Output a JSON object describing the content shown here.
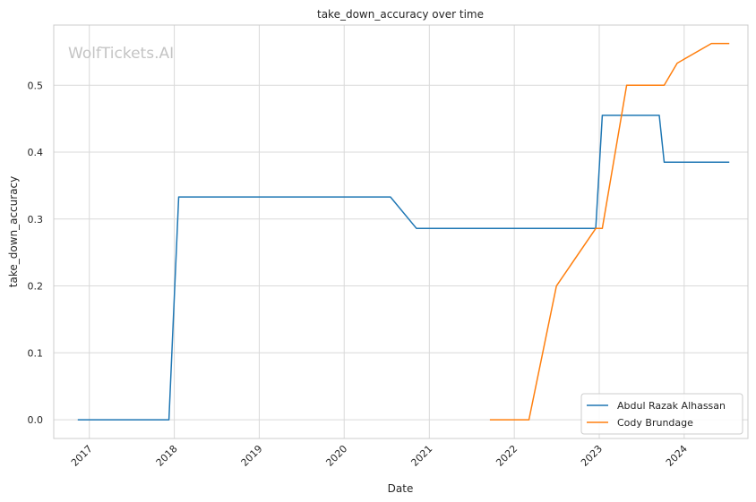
{
  "chart_data": {
    "type": "line",
    "title": "take_down_accuracy over time",
    "xlabel": "Date",
    "ylabel": "take_down_accuracy",
    "watermark": "WolfTickets.AI",
    "x_range": [
      "2016-08-01",
      "2024-10-01"
    ],
    "ylim": [
      -0.028,
      0.59
    ],
    "x_ticks": [
      {
        "date": "2017-01-01",
        "label": "2017"
      },
      {
        "date": "2018-01-01",
        "label": "2018"
      },
      {
        "date": "2019-01-01",
        "label": "2019"
      },
      {
        "date": "2020-01-01",
        "label": "2020"
      },
      {
        "date": "2021-01-01",
        "label": "2021"
      },
      {
        "date": "2022-01-01",
        "label": "2022"
      },
      {
        "date": "2023-01-01",
        "label": "2023"
      },
      {
        "date": "2024-01-01",
        "label": "2024"
      }
    ],
    "y_ticks": [
      {
        "value": 0.0,
        "label": "0.0"
      },
      {
        "value": 0.1,
        "label": "0.1"
      },
      {
        "value": 0.2,
        "label": "0.2"
      },
      {
        "value": 0.3,
        "label": "0.3"
      },
      {
        "value": 0.4,
        "label": "0.4"
      },
      {
        "value": 0.5,
        "label": "0.5"
      }
    ],
    "grid": true,
    "legend_position": "bottom-right",
    "series": [
      {
        "name": "Abdul Razak Alhassan",
        "color": "#1f77b4",
        "points": [
          {
            "x": "2016-11-12",
            "y": 0.0
          },
          {
            "x": "2017-12-09",
            "y": 0.0
          },
          {
            "x": "2018-01-20",
            "y": 0.333
          },
          {
            "x": "2020-07-18",
            "y": 0.333
          },
          {
            "x": "2020-11-07",
            "y": 0.286
          },
          {
            "x": "2022-12-17",
            "y": 0.286
          },
          {
            "x": "2023-01-14",
            "y": 0.455
          },
          {
            "x": "2023-09-16",
            "y": 0.455
          },
          {
            "x": "2023-10-07",
            "y": 0.385
          },
          {
            "x": "2024-07-13",
            "y": 0.385
          }
        ]
      },
      {
        "name": "Cody Brundage",
        "color": "#ff7f0e",
        "points": [
          {
            "x": "2021-09-18",
            "y": 0.0
          },
          {
            "x": "2022-03-05",
            "y": 0.0
          },
          {
            "x": "2022-07-01",
            "y": 0.2
          },
          {
            "x": "2022-12-17",
            "y": 0.286
          },
          {
            "x": "2023-01-14",
            "y": 0.286
          },
          {
            "x": "2023-04-29",
            "y": 0.5
          },
          {
            "x": "2023-10-07",
            "y": 0.5
          },
          {
            "x": "2023-12-02",
            "y": 0.533
          },
          {
            "x": "2024-04-27",
            "y": 0.5625
          },
          {
            "x": "2024-07-13",
            "y": 0.5625
          }
        ]
      }
    ]
  }
}
